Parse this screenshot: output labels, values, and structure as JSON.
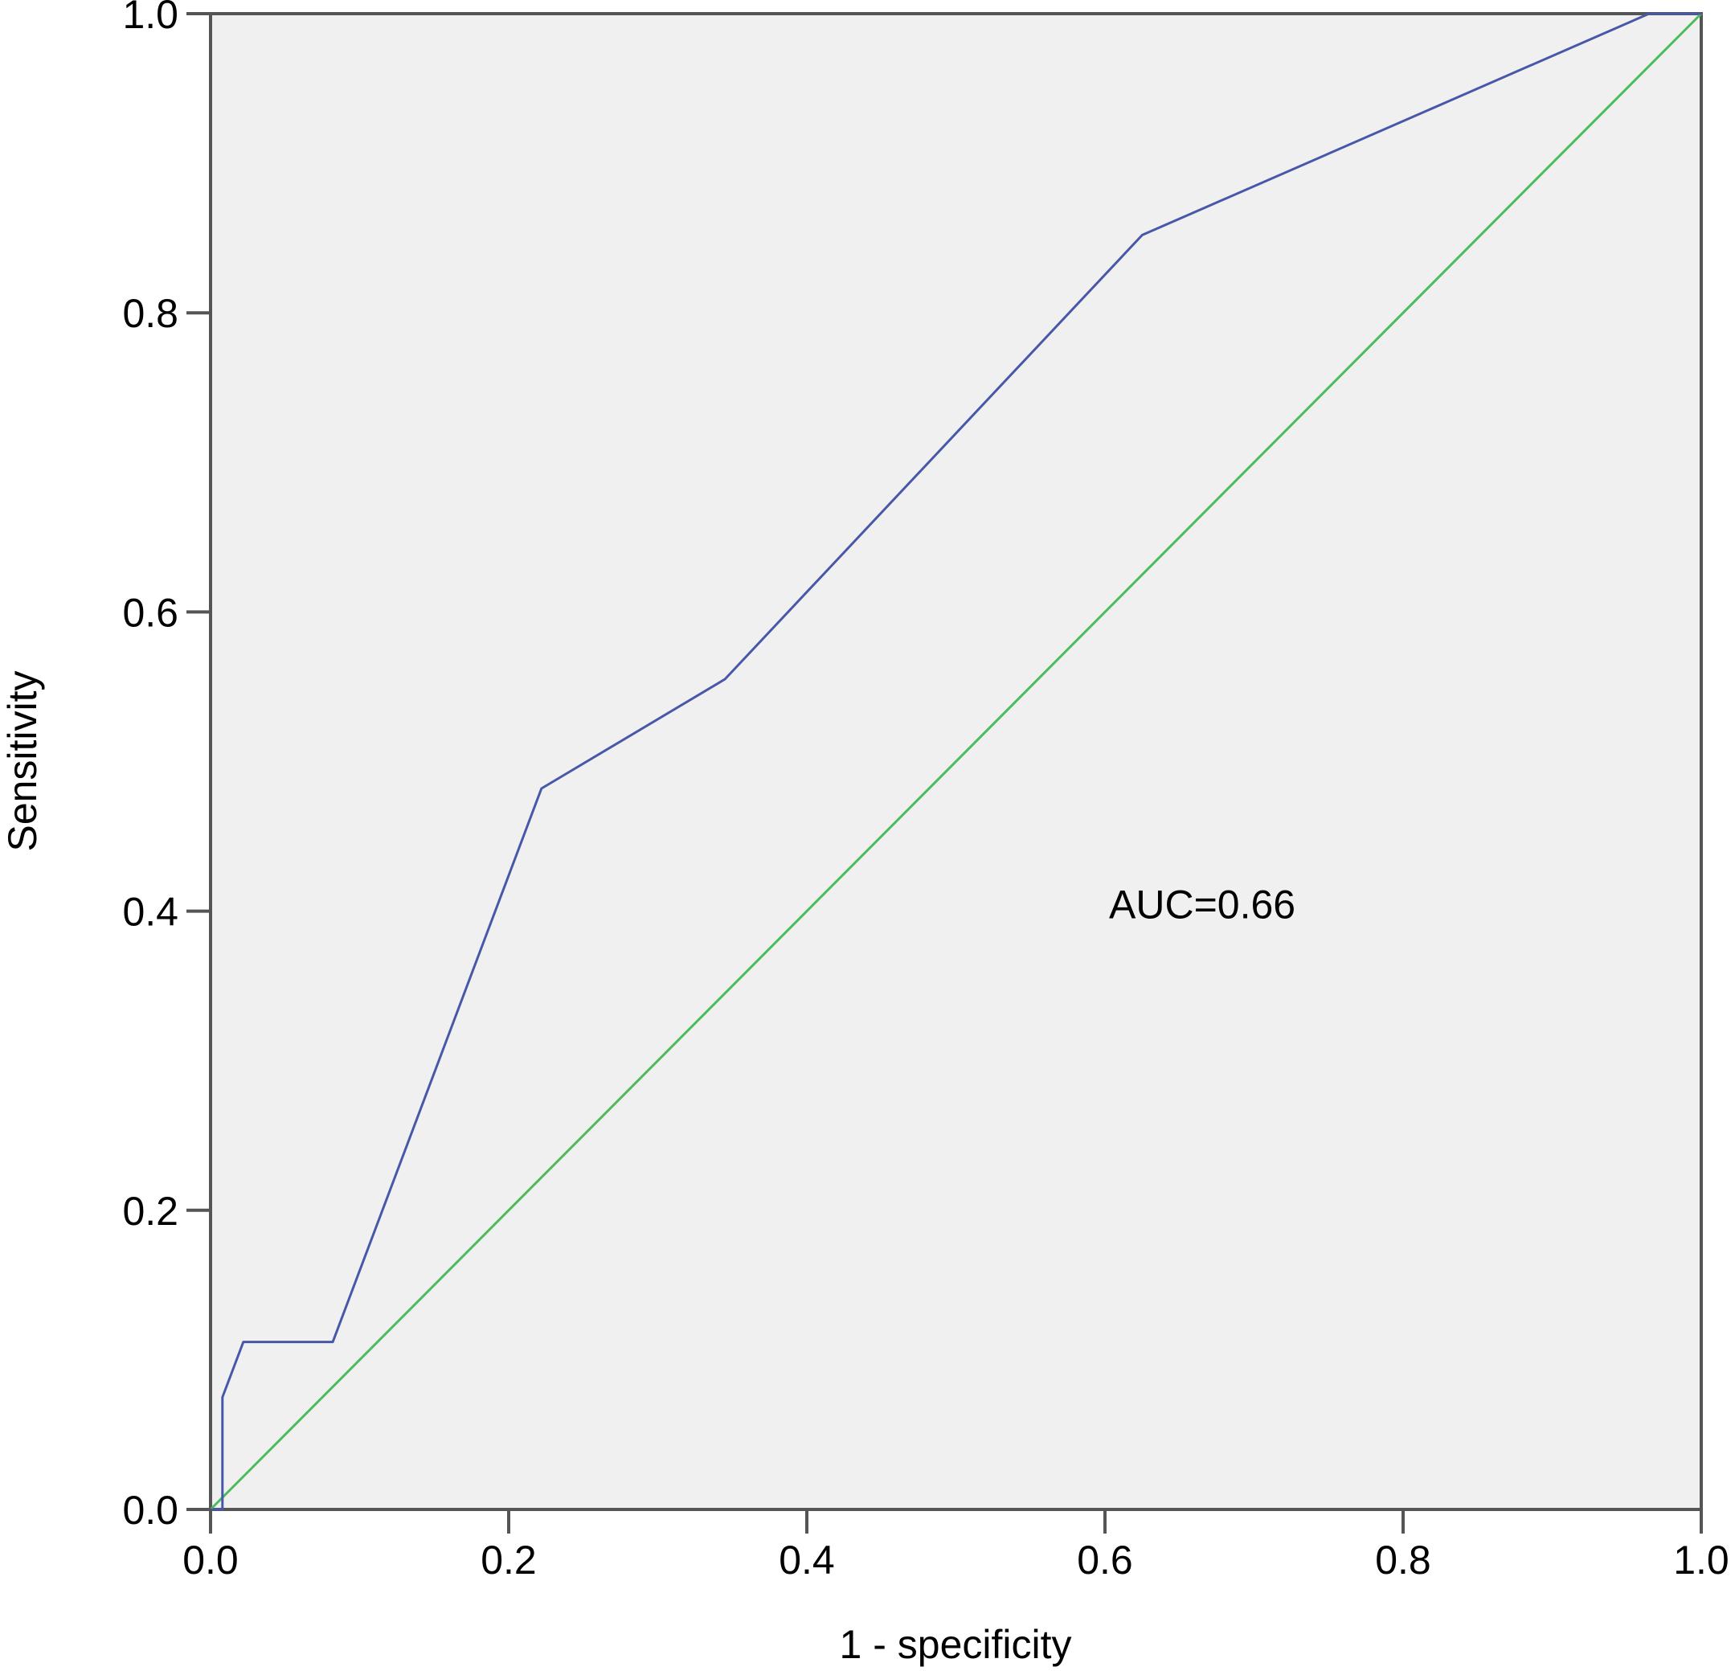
{
  "chart_data": {
    "type": "line",
    "title": "",
    "xlabel": "1 - specificity",
    "ylabel": "Sensitivity",
    "xlim": [
      0.0,
      1.0
    ],
    "ylim": [
      0.0,
      1.0
    ],
    "x_ticks": [
      "0.0",
      "0.2",
      "0.4",
      "0.6",
      "0.8",
      "1.0"
    ],
    "y_ticks": [
      "0.0",
      "0.2",
      "0.4",
      "0.6",
      "0.8",
      "1.0"
    ],
    "grid": false,
    "series": [
      {
        "x": [
          0.0,
          0.008,
          0.008,
          0.022,
          0.082,
          0.222,
          0.345,
          0.625,
          0.965,
          1.0
        ],
        "y": [
          0.0,
          0.0,
          0.075,
          0.112,
          0.112,
          0.482,
          0.555,
          0.852,
          1.0,
          1.0
        ],
        "color": "#4858a8"
      },
      {
        "x": [
          0.0,
          1.0
        ],
        "y": [
          0.0,
          1.0
        ],
        "color": "#4cbb5c"
      }
    ],
    "annotations": [
      {
        "text": "AUC=0.66",
        "x": 0.6,
        "y": 0.405
      }
    ],
    "plot_background": "#f0f0f0"
  }
}
